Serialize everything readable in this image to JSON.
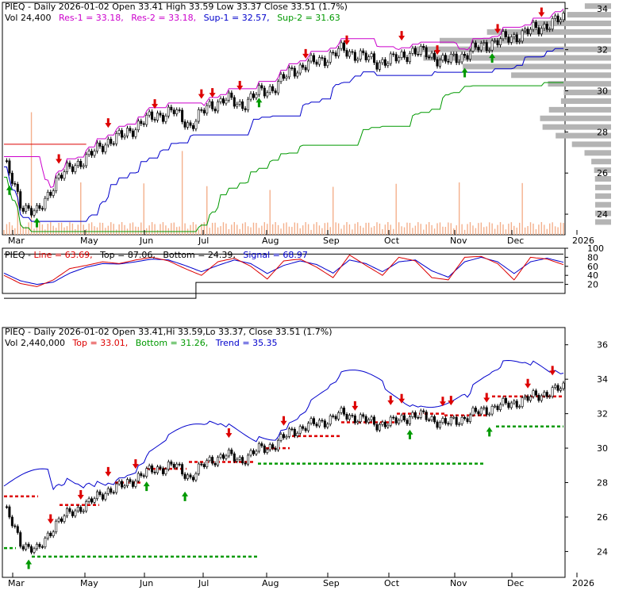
{
  "ticker": "PIEQ",
  "months": [
    "Mar",
    "May",
    "Jun",
    "Jul",
    "Aug",
    "Sep",
    "Oct",
    "Nov",
    "Dec",
    "2026"
  ],
  "panel1": {
    "title_line": "PIEQ - Daily 2026-01-02 Open 33.41  High 33.59  Low 33.37  Close 33.51 (1.7%)",
    "vol_text": "Vol 24,400",
    "res1_text": "Res-1 = 33.18,",
    "res2_text": "Res-2 = 33.18,",
    "sup1_text": "Sup-1 = 32.57,",
    "sup2_text": "Sup-2 = 31.63",
    "yticks": [
      "34",
      "32",
      "30",
      "28",
      "26",
      "24"
    ]
  },
  "panel2": {
    "title_prefix": "PIEQ - ",
    "line_text": "Line = 63.69,",
    "top_text": "Top = 87.06,",
    "bottom_text": "Bottom = 24.39,",
    "signal_text": "Signal = 68.97",
    "yticks": [
      "100",
      "80",
      "60",
      "40",
      "20"
    ]
  },
  "panel3": {
    "title_line": "PIEQ - Daily 2026-01-02 Open 33.41,Hi 33.59,Lo 33.37, Close 33.51 (1.7%)",
    "vol_text": "Vol 2,440,000",
    "top_text": "Top = 33.01,",
    "bottom_text": "Bottom = 31.26,",
    "trend_text": "Trend = 35.35",
    "yticks": [
      "36",
      "34",
      "32",
      "30",
      "28",
      "26",
      "24"
    ]
  },
  "colors": {
    "res": "#cc00cc",
    "sup1": "#0000cc",
    "sup2": "#009900",
    "red": "#dd0000",
    "green": "#009900",
    "blue": "#0000cc",
    "volume": "#f4b08c",
    "profile": "#b4b4b4"
  },
  "chart_data": [
    {
      "type": "line",
      "title": "PIEQ - Daily 2026-01-02 Open 33.41 High 33.59 Low 33.37 Close 33.51 (1.7%)",
      "x_axis": [
        "Mar",
        "May",
        "Jun",
        "Jul",
        "Aug",
        "Sep",
        "Oct",
        "Nov",
        "Dec",
        "2026"
      ],
      "ylim": [
        23,
        34.3
      ],
      "series": [
        {
          "name": "Close",
          "values": [
            26.6,
            24.5,
            24.0,
            25.6,
            26.3,
            26.8,
            27.5,
            27.8,
            28.4,
            28.8,
            29.0,
            28.3,
            29.2,
            29.6,
            29.3,
            29.9,
            30.2,
            31.0,
            31.3,
            31.6,
            32.0,
            31.7,
            31.4,
            31.5,
            31.9,
            31.8,
            31.4,
            31.7,
            32.1,
            32.4,
            32.6,
            32.9,
            33.2,
            33.5
          ]
        },
        {
          "name": "Res-1",
          "values": [
            33.18
          ]
        },
        {
          "name": "Res-2",
          "values": [
            33.18
          ]
        },
        {
          "name": "Sup-1",
          "values": [
            32.57
          ]
        },
        {
          "name": "Sup-2",
          "values": [
            31.63
          ]
        }
      ],
      "volume_last": 24400
    },
    {
      "type": "line",
      "title": "PIEQ - Line = 63.69, Top = 87.06, Bottom = 24.39, Signal = 68.97",
      "ylim": [
        0,
        100
      ],
      "series": [
        {
          "name": "Line",
          "values": [
            40,
            22,
            15,
            30,
            55,
            62,
            70,
            66,
            74,
            80,
            72,
            55,
            40,
            70,
            78,
            60,
            32,
            72,
            76,
            58,
            35,
            85,
            62,
            40,
            80,
            72,
            35,
            30,
            80,
            82,
            66,
            30,
            80,
            76,
            63.69
          ]
        },
        {
          "name": "Signal",
          "values": [
            45,
            28,
            20,
            25,
            45,
            58,
            66,
            65,
            70,
            76,
            74,
            62,
            48,
            62,
            74,
            66,
            44,
            62,
            72,
            64,
            45,
            74,
            66,
            48,
            70,
            74,
            50,
            36,
            70,
            80,
            70,
            44,
            70,
            78,
            68.97
          ]
        },
        {
          "name": "Top",
          "values": [
            87.06
          ]
        },
        {
          "name": "Bottom",
          "values": [
            24.39
          ]
        }
      ]
    },
    {
      "type": "line",
      "title": "PIEQ - Daily 2026-01-02 Open 33.41,Hi 33.59,Lo 33.37, Close 33.51 (1.7%)",
      "ylim": [
        22.5,
        37
      ],
      "series": [
        {
          "name": "Close",
          "values": [
            26.6,
            24.5,
            24.0,
            25.6,
            26.3,
            26.8,
            27.5,
            27.8,
            28.4,
            28.8,
            29.0,
            28.3,
            29.2,
            29.6,
            29.3,
            29.9,
            30.2,
            31.0,
            31.3,
            31.6,
            32.0,
            31.7,
            31.4,
            31.5,
            31.9,
            31.8,
            31.4,
            31.7,
            32.1,
            32.4,
            32.6,
            32.9,
            33.2,
            33.5
          ]
        },
        {
          "name": "Top",
          "values": [
            33.01
          ]
        },
        {
          "name": "Bottom",
          "values": [
            31.26
          ]
        },
        {
          "name": "Trend",
          "values": [
            35.35
          ]
        }
      ],
      "volume_last": 2440000
    }
  ]
}
